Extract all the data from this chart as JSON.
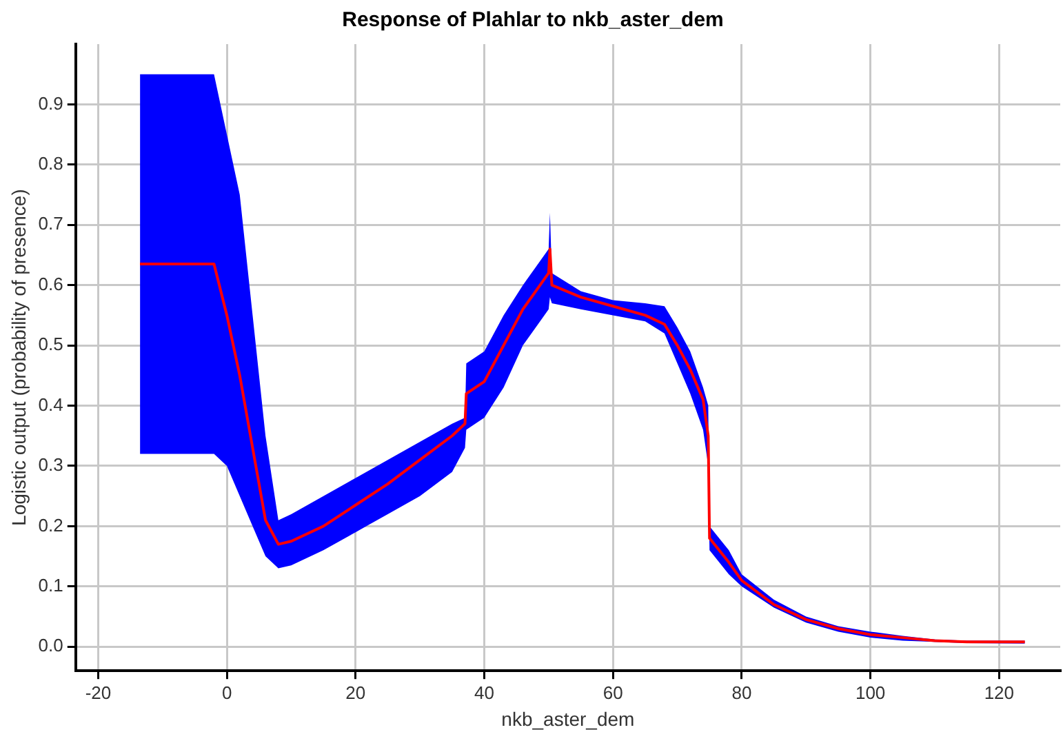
{
  "chart_data": {
    "type": "line",
    "title": "Response of Plahlar to nkb_aster_dem",
    "xlabel": "nkb_aster_dem",
    "ylabel": "Logistic output (probability of presence)",
    "x": [
      -13.5,
      -2,
      0,
      2,
      4,
      6,
      8,
      10,
      15,
      20,
      25,
      30,
      35,
      37,
      37.2,
      40,
      43,
      46,
      48,
      50,
      50.2,
      50.5,
      55,
      60,
      65,
      68,
      70,
      72,
      74,
      74.8,
      75,
      78,
      80,
      85,
      90,
      95,
      100,
      105,
      110,
      115,
      124
    ],
    "series": [
      {
        "color": "#ff0000",
        "values": [
          0.635,
          0.635,
          0.55,
          0.45,
          0.33,
          0.21,
          0.17,
          0.175,
          0.2,
          0.235,
          0.27,
          0.31,
          0.35,
          0.37,
          0.42,
          0.44,
          0.5,
          0.56,
          0.59,
          0.62,
          0.66,
          0.6,
          0.58,
          0.565,
          0.55,
          0.535,
          0.5,
          0.46,
          0.41,
          0.35,
          0.18,
          0.14,
          0.11,
          0.07,
          0.045,
          0.03,
          0.02,
          0.015,
          0.01,
          0.008,
          0.008
        ],
        "lower": [
          0.32,
          0.32,
          0.3,
          0.25,
          0.2,
          0.15,
          0.13,
          0.135,
          0.16,
          0.19,
          0.22,
          0.25,
          0.29,
          0.33,
          0.36,
          0.38,
          0.43,
          0.5,
          0.53,
          0.56,
          0.58,
          0.57,
          0.56,
          0.55,
          0.54,
          0.52,
          0.47,
          0.42,
          0.36,
          0.3,
          0.16,
          0.12,
          0.1,
          0.065,
          0.04,
          0.025,
          0.015,
          0.01,
          0.008,
          0.006,
          0.005
        ],
        "upper": [
          0.95,
          0.95,
          0.85,
          0.75,
          0.55,
          0.35,
          0.21,
          0.22,
          0.25,
          0.28,
          0.31,
          0.34,
          0.37,
          0.38,
          0.47,
          0.49,
          0.55,
          0.6,
          0.63,
          0.66,
          0.72,
          0.62,
          0.59,
          0.575,
          0.57,
          0.565,
          0.53,
          0.49,
          0.43,
          0.4,
          0.2,
          0.16,
          0.12,
          0.078,
          0.05,
          0.034,
          0.025,
          0.018,
          0.012,
          0.01,
          0.01
        ]
      }
    ],
    "xlim": [
      -23.5,
      129.5
    ],
    "xticks": [
      -20,
      0,
      20,
      40,
      60,
      80,
      100,
      120
    ],
    "ylim": [
      -0.04,
      1.0
    ],
    "yticks": [
      {
        "value": 0,
        "label": "0.0"
      },
      0.1,
      0.2,
      0.3,
      0.4,
      0.5,
      0.6,
      0.7,
      0.8,
      0.9
    ],
    "grid": true,
    "legend": false,
    "marker": "none",
    "line_style": "solid"
  }
}
